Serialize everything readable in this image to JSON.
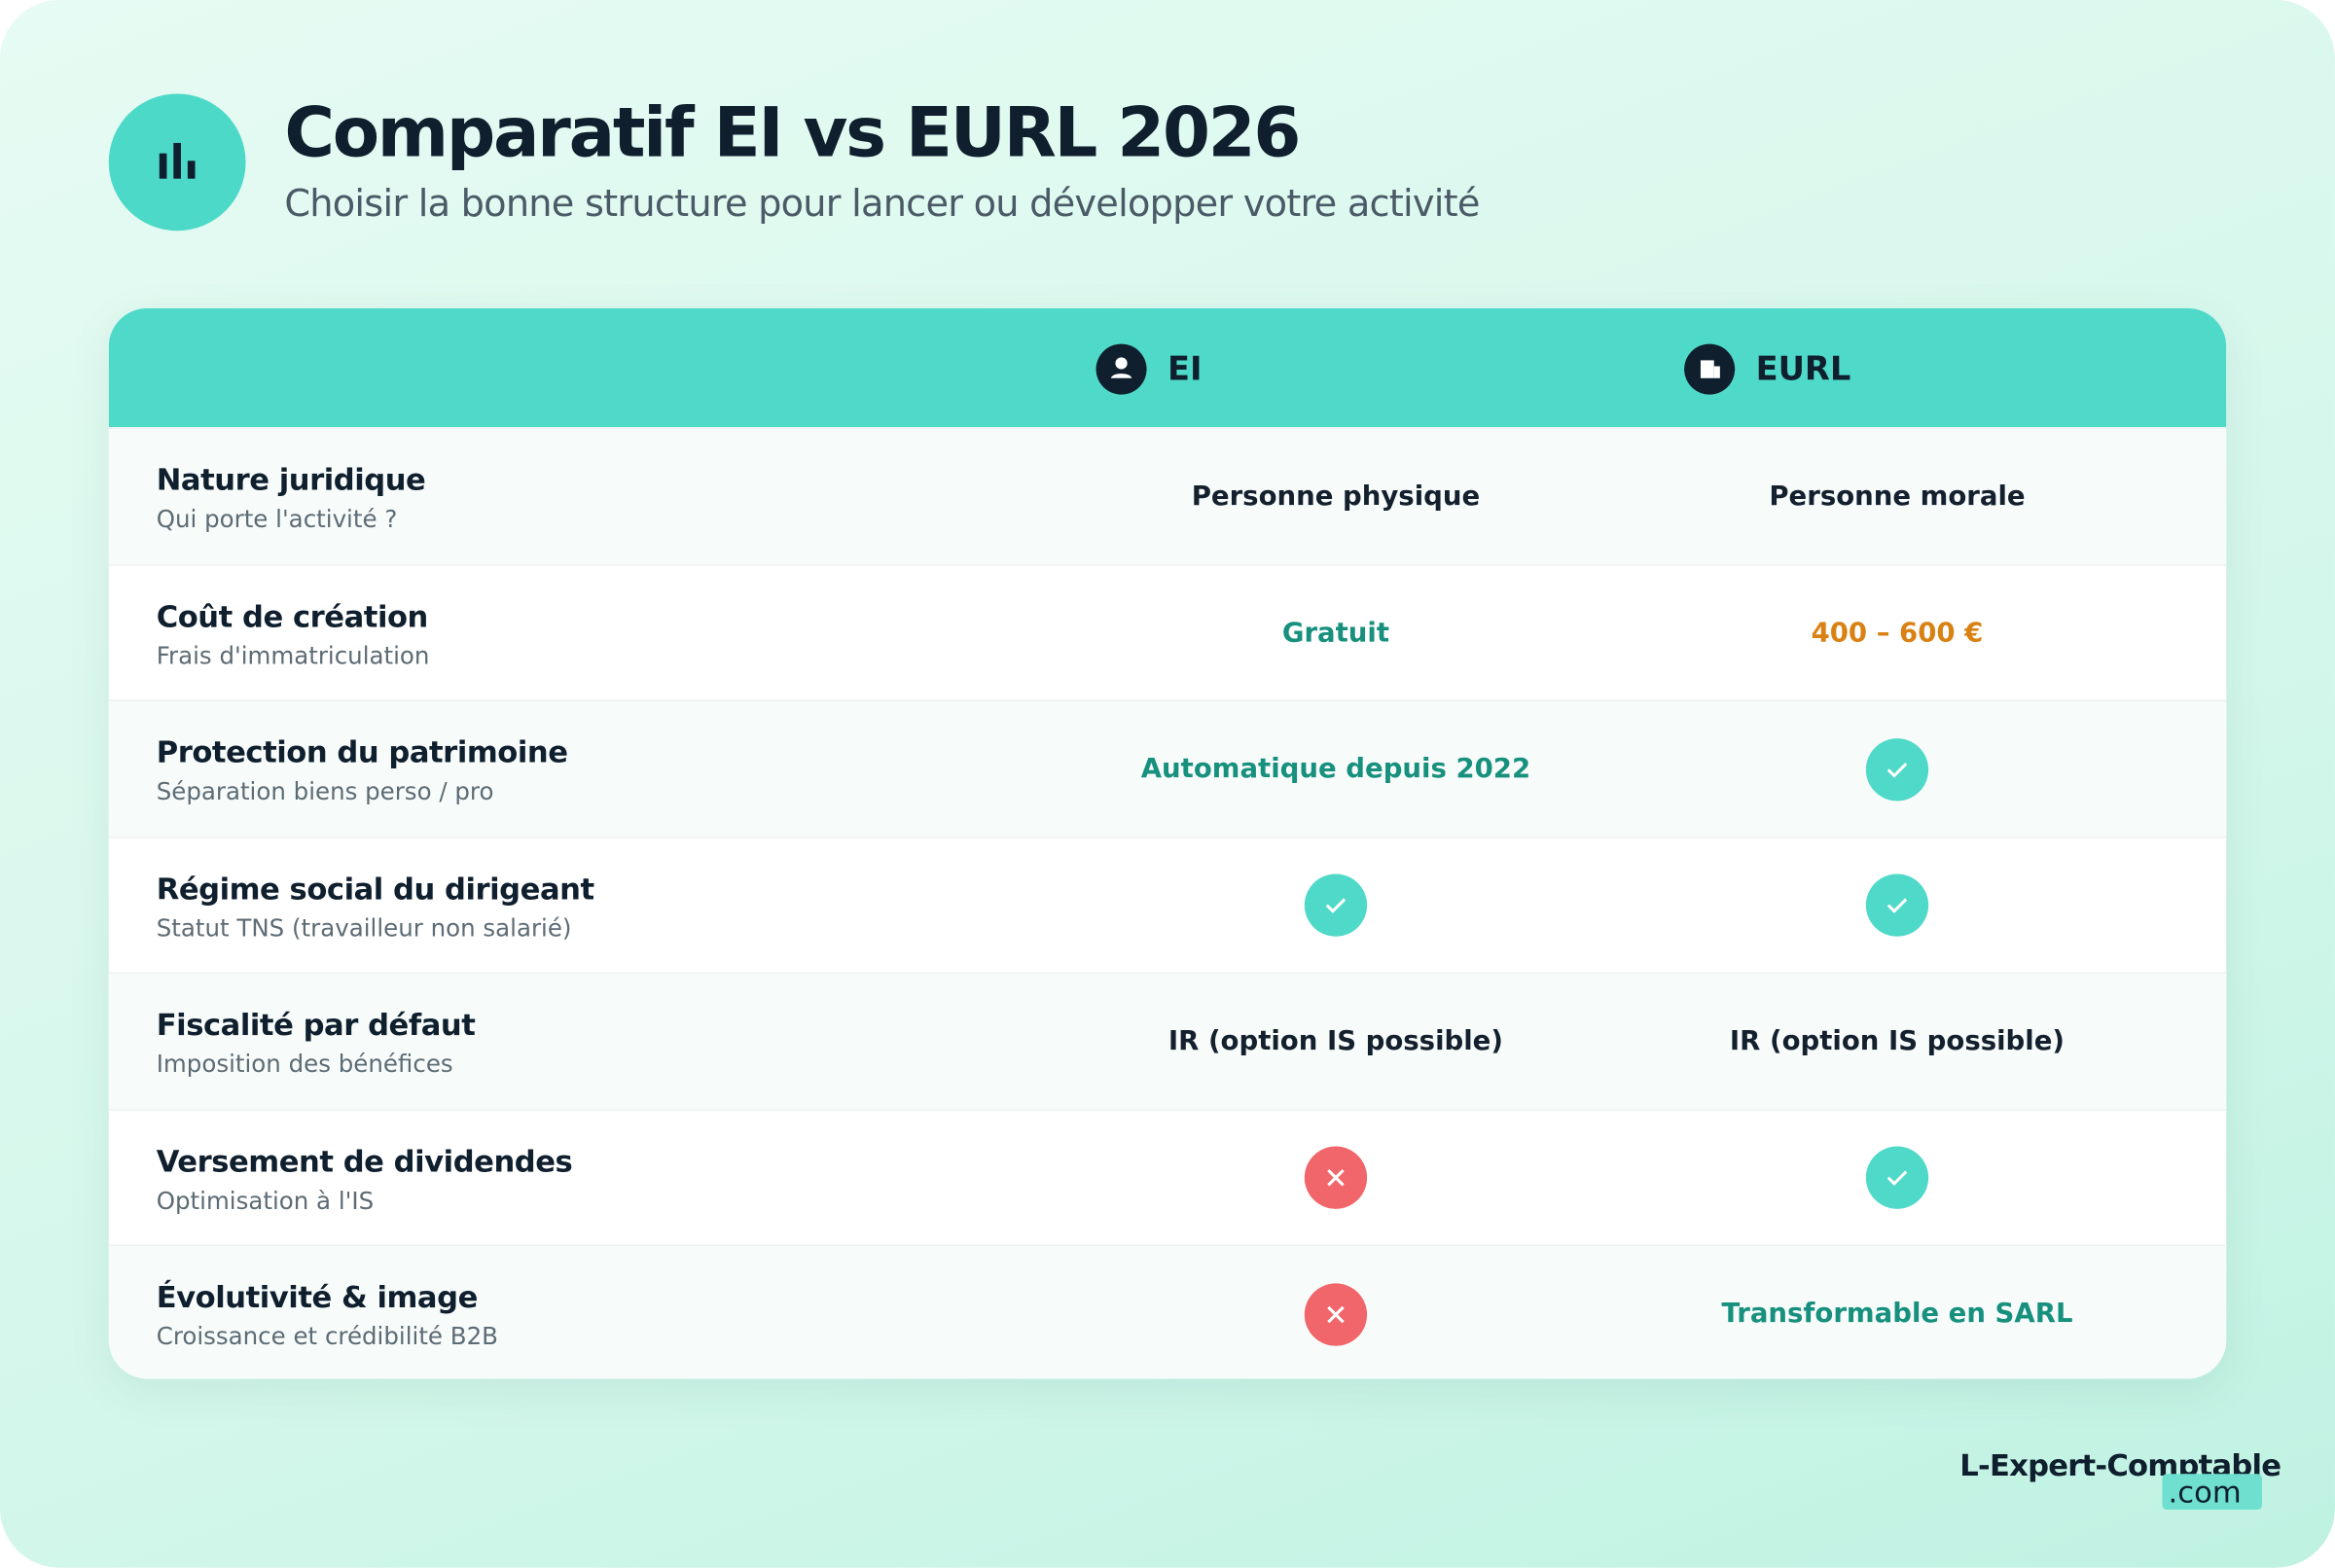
{
  "header": {
    "title": "Comparatif EI vs EURL 2026",
    "subtitle": "Choisir la bonne structure pour lancer ou développer votre activité"
  },
  "table": {
    "columns": [
      "EI",
      "EURL"
    ],
    "rows": [
      {
        "label": "Nature juridique",
        "sublabel": "Qui porte l'activité ?",
        "cells": [
          {
            "text": "Personne physique",
            "color": "#14202e"
          },
          {
            "text": "Personne morale",
            "color": "#14202e"
          }
        ]
      },
      {
        "label": "Coût de création",
        "sublabel": "Frais d'immatriculation",
        "cells": [
          {
            "text": "Gratuit",
            "color": "#17907e"
          },
          {
            "text": "400 – 600 €",
            "color": "#d98213"
          }
        ]
      },
      {
        "label": "Protection du patrimoine",
        "sublabel": "Séparation biens perso / pro",
        "cells": [
          {
            "text": "Automatique depuis 2022",
            "color": "#17907e"
          },
          {
            "icon": "check"
          }
        ]
      },
      {
        "label": "Régime social du dirigeant",
        "sublabel": "Statut TNS (travailleur non salarié)",
        "cells": [
          {
            "icon": "check"
          },
          {
            "icon": "check"
          }
        ]
      },
      {
        "label": "Fiscalité par défaut",
        "sublabel": "Imposition des bénéfices",
        "cells": [
          {
            "text": "IR (option IS possible)",
            "color": "#14202e"
          },
          {
            "text": "IR (option IS possible)",
            "color": "#14202e"
          }
        ]
      },
      {
        "label": "Versement de dividendes",
        "sublabel": "Optimisation à l'IS",
        "cells": [
          {
            "icon": "cross"
          },
          {
            "icon": "check"
          }
        ]
      },
      {
        "label": "Évolutivité & image",
        "sublabel": "Croissance et crédibilité B2B",
        "cells": [
          {
            "icon": "cross"
          },
          {
            "text": "Transformable en SARL",
            "color": "#17907e"
          }
        ]
      }
    ]
  },
  "footer": {
    "brand": "L-Expert-Comptable",
    "tld": ".com"
  }
}
